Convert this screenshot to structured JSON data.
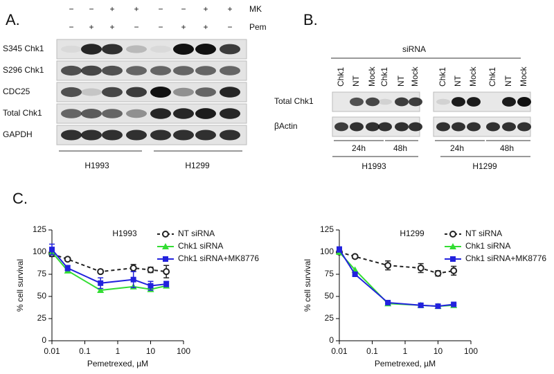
{
  "panels": {
    "a": {
      "label": "A.",
      "treatments": [
        {
          "name": "MK",
          "signs": [
            "−",
            "−",
            "+",
            "+",
            "−",
            "−",
            "+",
            "+"
          ]
        },
        {
          "name": "Pem",
          "signs": [
            "−",
            "+",
            "+",
            "−",
            "−",
            "+",
            "+",
            "−"
          ]
        }
      ],
      "rows": [
        "S345 Chk1",
        "S296 Chk1",
        "CDC25",
        "Total Chk1",
        "GAPDH"
      ],
      "cell_lines": [
        "H1993",
        "H1299"
      ]
    },
    "b": {
      "label": "B.",
      "header": "siRNA",
      "lanes": [
        "Chk1",
        "NT",
        "Mock",
        "Chk1",
        "NT",
        "Mock",
        "Chk1",
        "NT",
        "Mock",
        "Chk1",
        "NT",
        "Mock"
      ],
      "rows": [
        "Total Chk1",
        "βActin"
      ],
      "times": [
        "24h",
        "48h",
        "24h",
        "48h"
      ],
      "cell_lines": [
        "H1993",
        "H1299"
      ]
    },
    "c": {
      "label": "C."
    }
  },
  "chart_data": [
    {
      "type": "line",
      "title": "H1993",
      "x_label": "Pemetrexed, µM",
      "y_label": "% cell survival",
      "x": [
        0.01,
        0.03,
        0.3,
        3,
        10,
        30
      ],
      "x_scale": "log",
      "xlim": [
        0.01,
        100
      ],
      "xticks": [
        0.01,
        0.1,
        1,
        10,
        100
      ],
      "ylim": [
        0,
        125
      ],
      "yticks": [
        0,
        25,
        50,
        75,
        100,
        125
      ],
      "legend": "upper right",
      "series": [
        {
          "name": "NT siRNA",
          "color": "#222222",
          "marker": "circle-open",
          "linestyle": "dashed",
          "values": [
            98,
            92,
            78,
            82,
            80,
            78
          ],
          "errors": [
            3,
            2,
            2,
            4,
            3,
            7
          ]
        },
        {
          "name": "Chk1 siRNA",
          "color": "#33dd33",
          "marker": "triangle",
          "linestyle": "solid",
          "values": [
            100,
            79,
            57,
            61,
            58,
            62
          ]
        },
        {
          "name": "Chk1 siRNA+MK8776",
          "color": "#2222dd",
          "marker": "square",
          "linestyle": "solid",
          "values": [
            103,
            82,
            65,
            69,
            62,
            64
          ],
          "errors": [
            6,
            3,
            6,
            9,
            5,
            3
          ]
        }
      ]
    },
    {
      "type": "line",
      "title": "H1299",
      "x_label": "Pemetrexed, µM",
      "y_label": "% cell survival",
      "x": [
        0.01,
        0.03,
        0.3,
        3,
        10,
        30
      ],
      "x_scale": "log",
      "xlim": [
        0.01,
        100
      ],
      "xticks": [
        0.01,
        0.1,
        1,
        10,
        100
      ],
      "ylim": [
        0,
        125
      ],
      "yticks": [
        0,
        25,
        50,
        75,
        100,
        125
      ],
      "legend": "upper right",
      "series": [
        {
          "name": "NT siRNA",
          "color": "#222222",
          "marker": "circle-open",
          "linestyle": "dashed",
          "values": [
            100,
            95,
            85,
            82,
            76,
            79
          ],
          "errors": [
            2,
            2,
            5,
            5,
            3,
            5
          ]
        },
        {
          "name": "Chk1 siRNA",
          "color": "#33dd33",
          "marker": "triangle",
          "linestyle": "solid",
          "values": [
            100,
            80,
            42,
            40,
            39,
            40
          ]
        },
        {
          "name": "Chk1 siRNA+MK8776",
          "color": "#2222dd",
          "marker": "square",
          "linestyle": "solid",
          "values": [
            103,
            75,
            43,
            40,
            39,
            41
          ],
          "errors": [
            3,
            2,
            1,
            2,
            1,
            1
          ]
        }
      ]
    }
  ]
}
